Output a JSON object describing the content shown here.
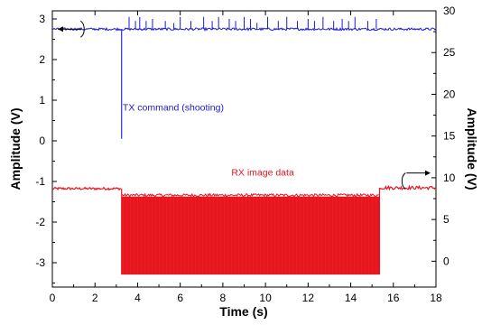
{
  "chart_data": {
    "type": "line",
    "xlabel": "Time (s)",
    "ylabel_left": "Amplitude (V)",
    "ylabel_right": "Amplitude (V)",
    "xlim": [
      0,
      18
    ],
    "ylim_left": [
      -3.6,
      3.2
    ],
    "ylim_right": [
      -3.1,
      30.0
    ],
    "x_ticks": [
      0,
      2,
      4,
      6,
      8,
      10,
      12,
      14,
      16,
      18
    ],
    "y_left_ticks": [
      -3,
      -2,
      -1,
      0,
      1,
      2,
      3
    ],
    "y_right_ticks": [
      0,
      5,
      10,
      15,
      20,
      25,
      30
    ],
    "x_tick_labels": [
      "0",
      "2",
      "4",
      "6",
      "8",
      "10",
      "12",
      "14",
      "16",
      "18"
    ],
    "y_left_tick_labels": [
      "-3",
      "-2",
      "-1",
      "0",
      "1",
      "2",
      "3"
    ],
    "y_right_tick_labels": [
      "0",
      "5",
      "10",
      "15",
      "20",
      "25",
      "30"
    ],
    "grid": false,
    "series": [
      {
        "name": "TX command (shooting)",
        "axis": "left",
        "color": "#1a1ad0",
        "baseline": 2.75,
        "noise": 0.03,
        "dip": {
          "x": 3.25,
          "y": 0.05
        },
        "spikes": [
          {
            "x": 3.6,
            "y": 3.05
          },
          {
            "x": 3.9,
            "y": 2.95
          },
          {
            "x": 4.1,
            "y": 3.05
          },
          {
            "x": 4.4,
            "y": 2.95
          },
          {
            "x": 4.7,
            "y": 3.0
          },
          {
            "x": 5.3,
            "y": 2.95
          },
          {
            "x": 5.7,
            "y": 2.9
          },
          {
            "x": 6.0,
            "y": 3.05
          },
          {
            "x": 6.5,
            "y": 2.95
          },
          {
            "x": 7.1,
            "y": 3.05
          },
          {
            "x": 7.5,
            "y": 2.95
          },
          {
            "x": 7.8,
            "y": 3.05
          },
          {
            "x": 8.3,
            "y": 3.0
          },
          {
            "x": 8.6,
            "y": 2.95
          },
          {
            "x": 9.0,
            "y": 3.05
          },
          {
            "x": 9.3,
            "y": 3.0
          },
          {
            "x": 9.6,
            "y": 2.9
          },
          {
            "x": 10.1,
            "y": 3.05
          },
          {
            "x": 10.6,
            "y": 2.95
          },
          {
            "x": 11.0,
            "y": 3.05
          },
          {
            "x": 11.5,
            "y": 2.95
          },
          {
            "x": 12.0,
            "y": 3.0
          },
          {
            "x": 12.3,
            "y": 2.95
          },
          {
            "x": 12.7,
            "y": 3.05
          },
          {
            "x": 13.2,
            "y": 2.95
          },
          {
            "x": 13.6,
            "y": 3.0
          },
          {
            "x": 13.9,
            "y": 2.95
          },
          {
            "x": 14.2,
            "y": 3.05
          },
          {
            "x": 14.8,
            "y": 2.95
          },
          {
            "x": 15.2,
            "y": 3.0
          }
        ]
      },
      {
        "name": "RX image data",
        "axis": "right",
        "color": "#e8141e",
        "segments": [
          {
            "x": [
              0.0,
              3.25
            ],
            "center": 8.7,
            "half_width": 0.15,
            "shape": "noise"
          },
          {
            "x": [
              3.25,
              15.35
            ],
            "low": -1.6,
            "high": 7.75,
            "shape": "band"
          },
          {
            "x": [
              15.35,
              18.0
            ],
            "center": 8.8,
            "half_width": 0.2,
            "shape": "noise"
          }
        ]
      }
    ],
    "annotations": [
      {
        "text": "TX command (shooting)",
        "x": 3.3,
        "y": 0.75,
        "color": "#1a1ad0"
      },
      {
        "text": "RX image data",
        "x": 8.4,
        "y": -0.85,
        "color": "#e8141e"
      }
    ],
    "axis_markers": [
      {
        "series": "TX command (shooting)",
        "points_to": "left axis",
        "x": 1.2,
        "y": 2.75
      },
      {
        "series": "RX image data",
        "points_to": "right axis",
        "x": 16.7,
        "y": 9.6
      }
    ]
  }
}
